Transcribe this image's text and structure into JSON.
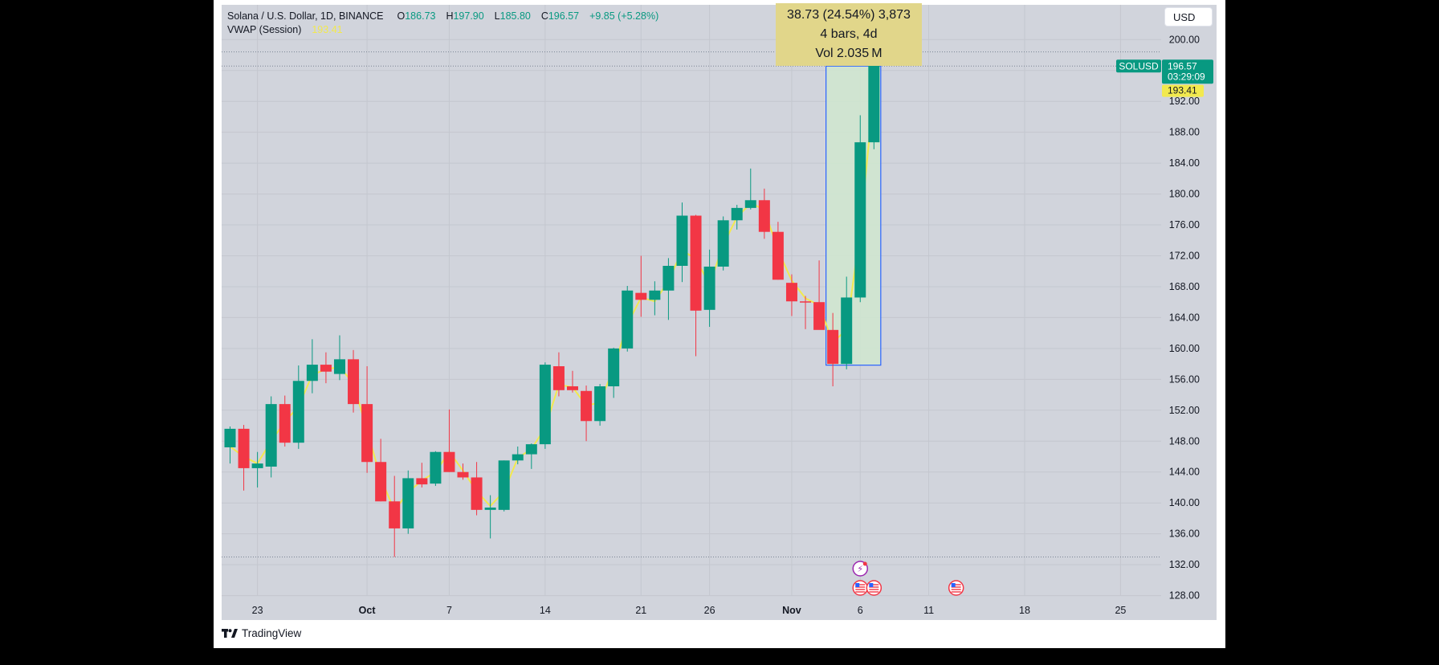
{
  "header": {
    "symbol_line": "Solana / U.S. Dollar, 1D, BINANCE",
    "o_label": "O",
    "o_value": "186.73",
    "h_label": "H",
    "h_value": "197.90",
    "l_label": "L",
    "l_value": "185.80",
    "c_label": "C",
    "c_value": "196.57",
    "change": "+9.85 (+5.28%)",
    "indicator_name": "VWAP (Session)",
    "indicator_value": "193.41"
  },
  "currency_button": "USD",
  "measure_tooltip": {
    "line1": "38.73 (24.54%) 3,873",
    "line2": "4 bars, 4d",
    "line3": "Vol 2.035 M"
  },
  "price_tags": {
    "symbol": "SOLUSD",
    "last_price": "196.57",
    "countdown": "03:29:09",
    "vwap_price": "193.41"
  },
  "brand": "TradingView",
  "colors": {
    "up": "#089981",
    "down": "#f23645",
    "vwap": "#f2e94e",
    "background": "#d1d4dc",
    "measure_fill": "#cfe6cf",
    "measure_border": "#2962ff"
  },
  "chart_data": {
    "type": "candlestick",
    "title": "Solana / U.S. Dollar, 1D, BINANCE",
    "y_ticks": [
      "128.00",
      "132.00",
      "136.00",
      "140.00",
      "144.00",
      "148.00",
      "152.00",
      "156.00",
      "160.00",
      "164.00",
      "168.00",
      "172.00",
      "176.00",
      "180.00",
      "184.00",
      "188.00",
      "192.00",
      "196.00",
      "200.00"
    ],
    "ylim": [
      126.5,
      204.5
    ],
    "x_ticks": [
      {
        "label": "23",
        "index": 2
      },
      {
        "label": "Oct",
        "index": 10
      },
      {
        "label": "7",
        "index": 16
      },
      {
        "label": "14",
        "index": 23
      },
      {
        "label": "21",
        "index": 30
      },
      {
        "label": "26",
        "index": 35
      },
      {
        "label": "Nov",
        "index": 41
      },
      {
        "label": "6",
        "index": 46
      },
      {
        "label": "11",
        "index": 51
      },
      {
        "label": "18",
        "index": 58
      },
      {
        "label": "25",
        "index": 65
      }
    ],
    "candles": [
      {
        "o": 147.2,
        "h": 149.9,
        "l": 145.1,
        "c": 149.6
      },
      {
        "o": 149.6,
        "h": 150.1,
        "l": 141.6,
        "c": 144.5
      },
      {
        "o": 144.5,
        "h": 146.6,
        "l": 142.0,
        "c": 145.1
      },
      {
        "o": 144.7,
        "h": 153.8,
        "l": 143.3,
        "c": 152.8
      },
      {
        "o": 152.8,
        "h": 153.9,
        "l": 147.3,
        "c": 147.8
      },
      {
        "o": 147.8,
        "h": 157.8,
        "l": 147.0,
        "c": 155.8
      },
      {
        "o": 155.8,
        "h": 161.2,
        "l": 154.2,
        "c": 157.9
      },
      {
        "o": 157.9,
        "h": 159.5,
        "l": 155.5,
        "c": 157.0
      },
      {
        "o": 156.7,
        "h": 161.7,
        "l": 155.9,
        "c": 158.6
      },
      {
        "o": 158.6,
        "h": 159.8,
        "l": 151.7,
        "c": 152.8
      },
      {
        "o": 152.8,
        "h": 157.7,
        "l": 143.9,
        "c": 145.3
      },
      {
        "o": 145.3,
        "h": 148.3,
        "l": 140.2,
        "c": 140.2
      },
      {
        "o": 140.2,
        "h": 143.5,
        "l": 133.0,
        "c": 136.7
      },
      {
        "o": 136.7,
        "h": 144.2,
        "l": 136.0,
        "c": 143.2
      },
      {
        "o": 143.2,
        "h": 145.2,
        "l": 142.0,
        "c": 142.4
      },
      {
        "o": 142.5,
        "h": 146.7,
        "l": 142.2,
        "c": 146.6
      },
      {
        "o": 146.6,
        "h": 152.1,
        "l": 144.0,
        "c": 144.0
      },
      {
        "o": 144.0,
        "h": 145.1,
        "l": 143.0,
        "c": 143.3
      },
      {
        "o": 143.3,
        "h": 145.3,
        "l": 138.4,
        "c": 139.1
      },
      {
        "o": 139.1,
        "h": 141.0,
        "l": 135.4,
        "c": 139.4
      },
      {
        "o": 139.1,
        "h": 145.5,
        "l": 138.9,
        "c": 145.5
      },
      {
        "o": 145.5,
        "h": 147.3,
        "l": 145.0,
        "c": 146.3
      },
      {
        "o": 146.3,
        "h": 147.7,
        "l": 144.4,
        "c": 147.6
      },
      {
        "o": 147.6,
        "h": 158.2,
        "l": 147.0,
        "c": 157.9
      },
      {
        "o": 157.7,
        "h": 159.5,
        "l": 153.8,
        "c": 154.6
      },
      {
        "o": 155.1,
        "h": 157.1,
        "l": 154.3,
        "c": 154.6
      },
      {
        "o": 154.5,
        "h": 155.2,
        "l": 148.0,
        "c": 150.6
      },
      {
        "o": 150.6,
        "h": 155.4,
        "l": 150.0,
        "c": 155.1
      },
      {
        "o": 155.1,
        "h": 160.1,
        "l": 153.6,
        "c": 160.0
      },
      {
        "o": 160.0,
        "h": 168.1,
        "l": 159.6,
        "c": 167.5
      },
      {
        "o": 167.2,
        "h": 172.0,
        "l": 164.1,
        "c": 166.3
      },
      {
        "o": 166.3,
        "h": 168.7,
        "l": 164.3,
        "c": 167.5
      },
      {
        "o": 167.5,
        "h": 171.7,
        "l": 163.7,
        "c": 170.7
      },
      {
        "o": 170.7,
        "h": 178.9,
        "l": 168.6,
        "c": 177.2
      },
      {
        "o": 177.2,
        "h": 177.3,
        "l": 159.0,
        "c": 164.9
      },
      {
        "o": 165.0,
        "h": 172.8,
        "l": 162.8,
        "c": 170.6
      },
      {
        "o": 170.6,
        "h": 177.1,
        "l": 170.1,
        "c": 176.6
      },
      {
        "o": 176.6,
        "h": 178.6,
        "l": 175.4,
        "c": 178.2
      },
      {
        "o": 178.2,
        "h": 183.3,
        "l": 178.0,
        "c": 179.2
      },
      {
        "o": 179.2,
        "h": 180.7,
        "l": 174.2,
        "c": 175.1
      },
      {
        "o": 175.1,
        "h": 176.4,
        "l": 168.9,
        "c": 168.9
      },
      {
        "o": 168.5,
        "h": 169.6,
        "l": 164.2,
        "c": 166.1
      },
      {
        "o": 166.1,
        "h": 166.8,
        "l": 162.5,
        "c": 166.0
      },
      {
        "o": 166.0,
        "h": 171.4,
        "l": 162.5,
        "c": 162.4
      },
      {
        "o": 162.4,
        "h": 164.6,
        "l": 155.1,
        "c": 158.0
      },
      {
        "o": 158.0,
        "h": 169.3,
        "l": 157.3,
        "c": 166.6
      },
      {
        "o": 166.6,
        "h": 190.2,
        "l": 166.0,
        "c": 186.7
      },
      {
        "o": 186.7,
        "h": 197.9,
        "l": 185.8,
        "c": 196.6
      }
    ],
    "vwap": [
      147.3,
      146.0,
      145.1,
      148.0,
      150.5,
      152.5,
      156.6,
      157.3,
      157.6,
      155.5,
      149.4,
      143.2,
      139.0,
      141.4,
      142.9,
      144.0,
      146.6,
      144.2,
      141.5,
      139.6,
      141.5,
      145.8,
      147.0,
      149.7,
      155.3,
      155.0,
      152.6,
      153.0,
      157.5,
      163.1,
      166.6,
      166.1,
      168.7,
      172.7,
      171.6,
      168.3,
      173.4,
      177.0,
      178.8,
      178.0,
      172.7,
      168.8,
      166.5,
      165.6,
      160.8,
      162.4,
      175.3,
      193.41
    ],
    "price_lines": {
      "last": 196.57,
      "vwap": 193.41,
      "dotted_high": 198.4,
      "dotted_low": 133.0
    },
    "measure_range": {
      "from_index": 44,
      "to_index": 47,
      "low": 157.84,
      "high": 196.57
    },
    "event_markers": [
      {
        "index": 46,
        "type": "earnings",
        "row": 1
      },
      {
        "index": 46,
        "type": "us-economic-event",
        "row": 2
      },
      {
        "index": 47,
        "type": "us-economic-event",
        "row": 2
      },
      {
        "index": 53,
        "type": "us-economic-event",
        "row": 2
      }
    ]
  }
}
